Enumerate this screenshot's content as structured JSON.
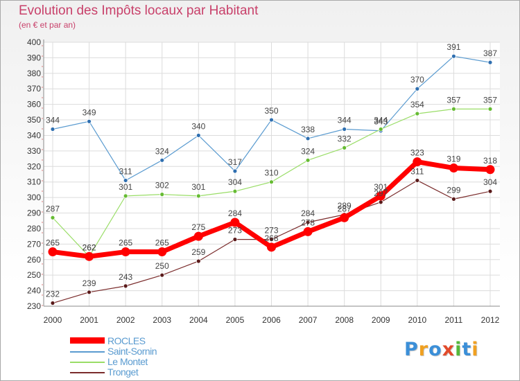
{
  "chart_data": {
    "type": "line",
    "title": "Evolution des Impôts locaux par Habitant",
    "subtitle": "(en € et par an)",
    "x": [
      "2000",
      "2001",
      "2002",
      "2003",
      "2004",
      "2005",
      "2006",
      "2007",
      "2008",
      "2009",
      "2010",
      "2011",
      "2012"
    ],
    "ylim": [
      230,
      400
    ],
    "yticks": [
      230,
      240,
      250,
      260,
      270,
      280,
      290,
      300,
      310,
      320,
      330,
      340,
      350,
      360,
      370,
      380,
      390,
      400
    ],
    "grid": true,
    "legend_position": "bottom-left",
    "series": [
      {
        "name": "ROCLES",
        "color": "#ff0000",
        "values": [
          265,
          262,
          265,
          265,
          275,
          284,
          268,
          278,
          287,
          301,
          323,
          319,
          318
        ]
      },
      {
        "name": "Saint-Sornin",
        "color": "#5a9bd0",
        "values": [
          344,
          349,
          311,
          324,
          340,
          317,
          350,
          338,
          344,
          343,
          370,
          391,
          387
        ]
      },
      {
        "name": "Le Montet",
        "color": "#99dd66",
        "values": [
          287,
          262,
          301,
          302,
          301,
          304,
          310,
          324,
          332,
          344,
          354,
          357,
          357
        ]
      },
      {
        "name": "Tronget",
        "color": "#7a2b2b",
        "values": [
          232,
          239,
          243,
          250,
          259,
          273,
          273,
          284,
          289,
          297,
          311,
          299,
          304
        ]
      }
    ]
  },
  "branding": {
    "logo_letters": [
      "P",
      "r",
      "o",
      "x",
      "i",
      "t",
      "i"
    ],
    "logo_colors": [
      "#3b8fd8",
      "#f0a020",
      "#3b8fd8",
      "#e24a2a",
      "#55b83a",
      "#3b8fd8",
      "#f0a020"
    ]
  }
}
